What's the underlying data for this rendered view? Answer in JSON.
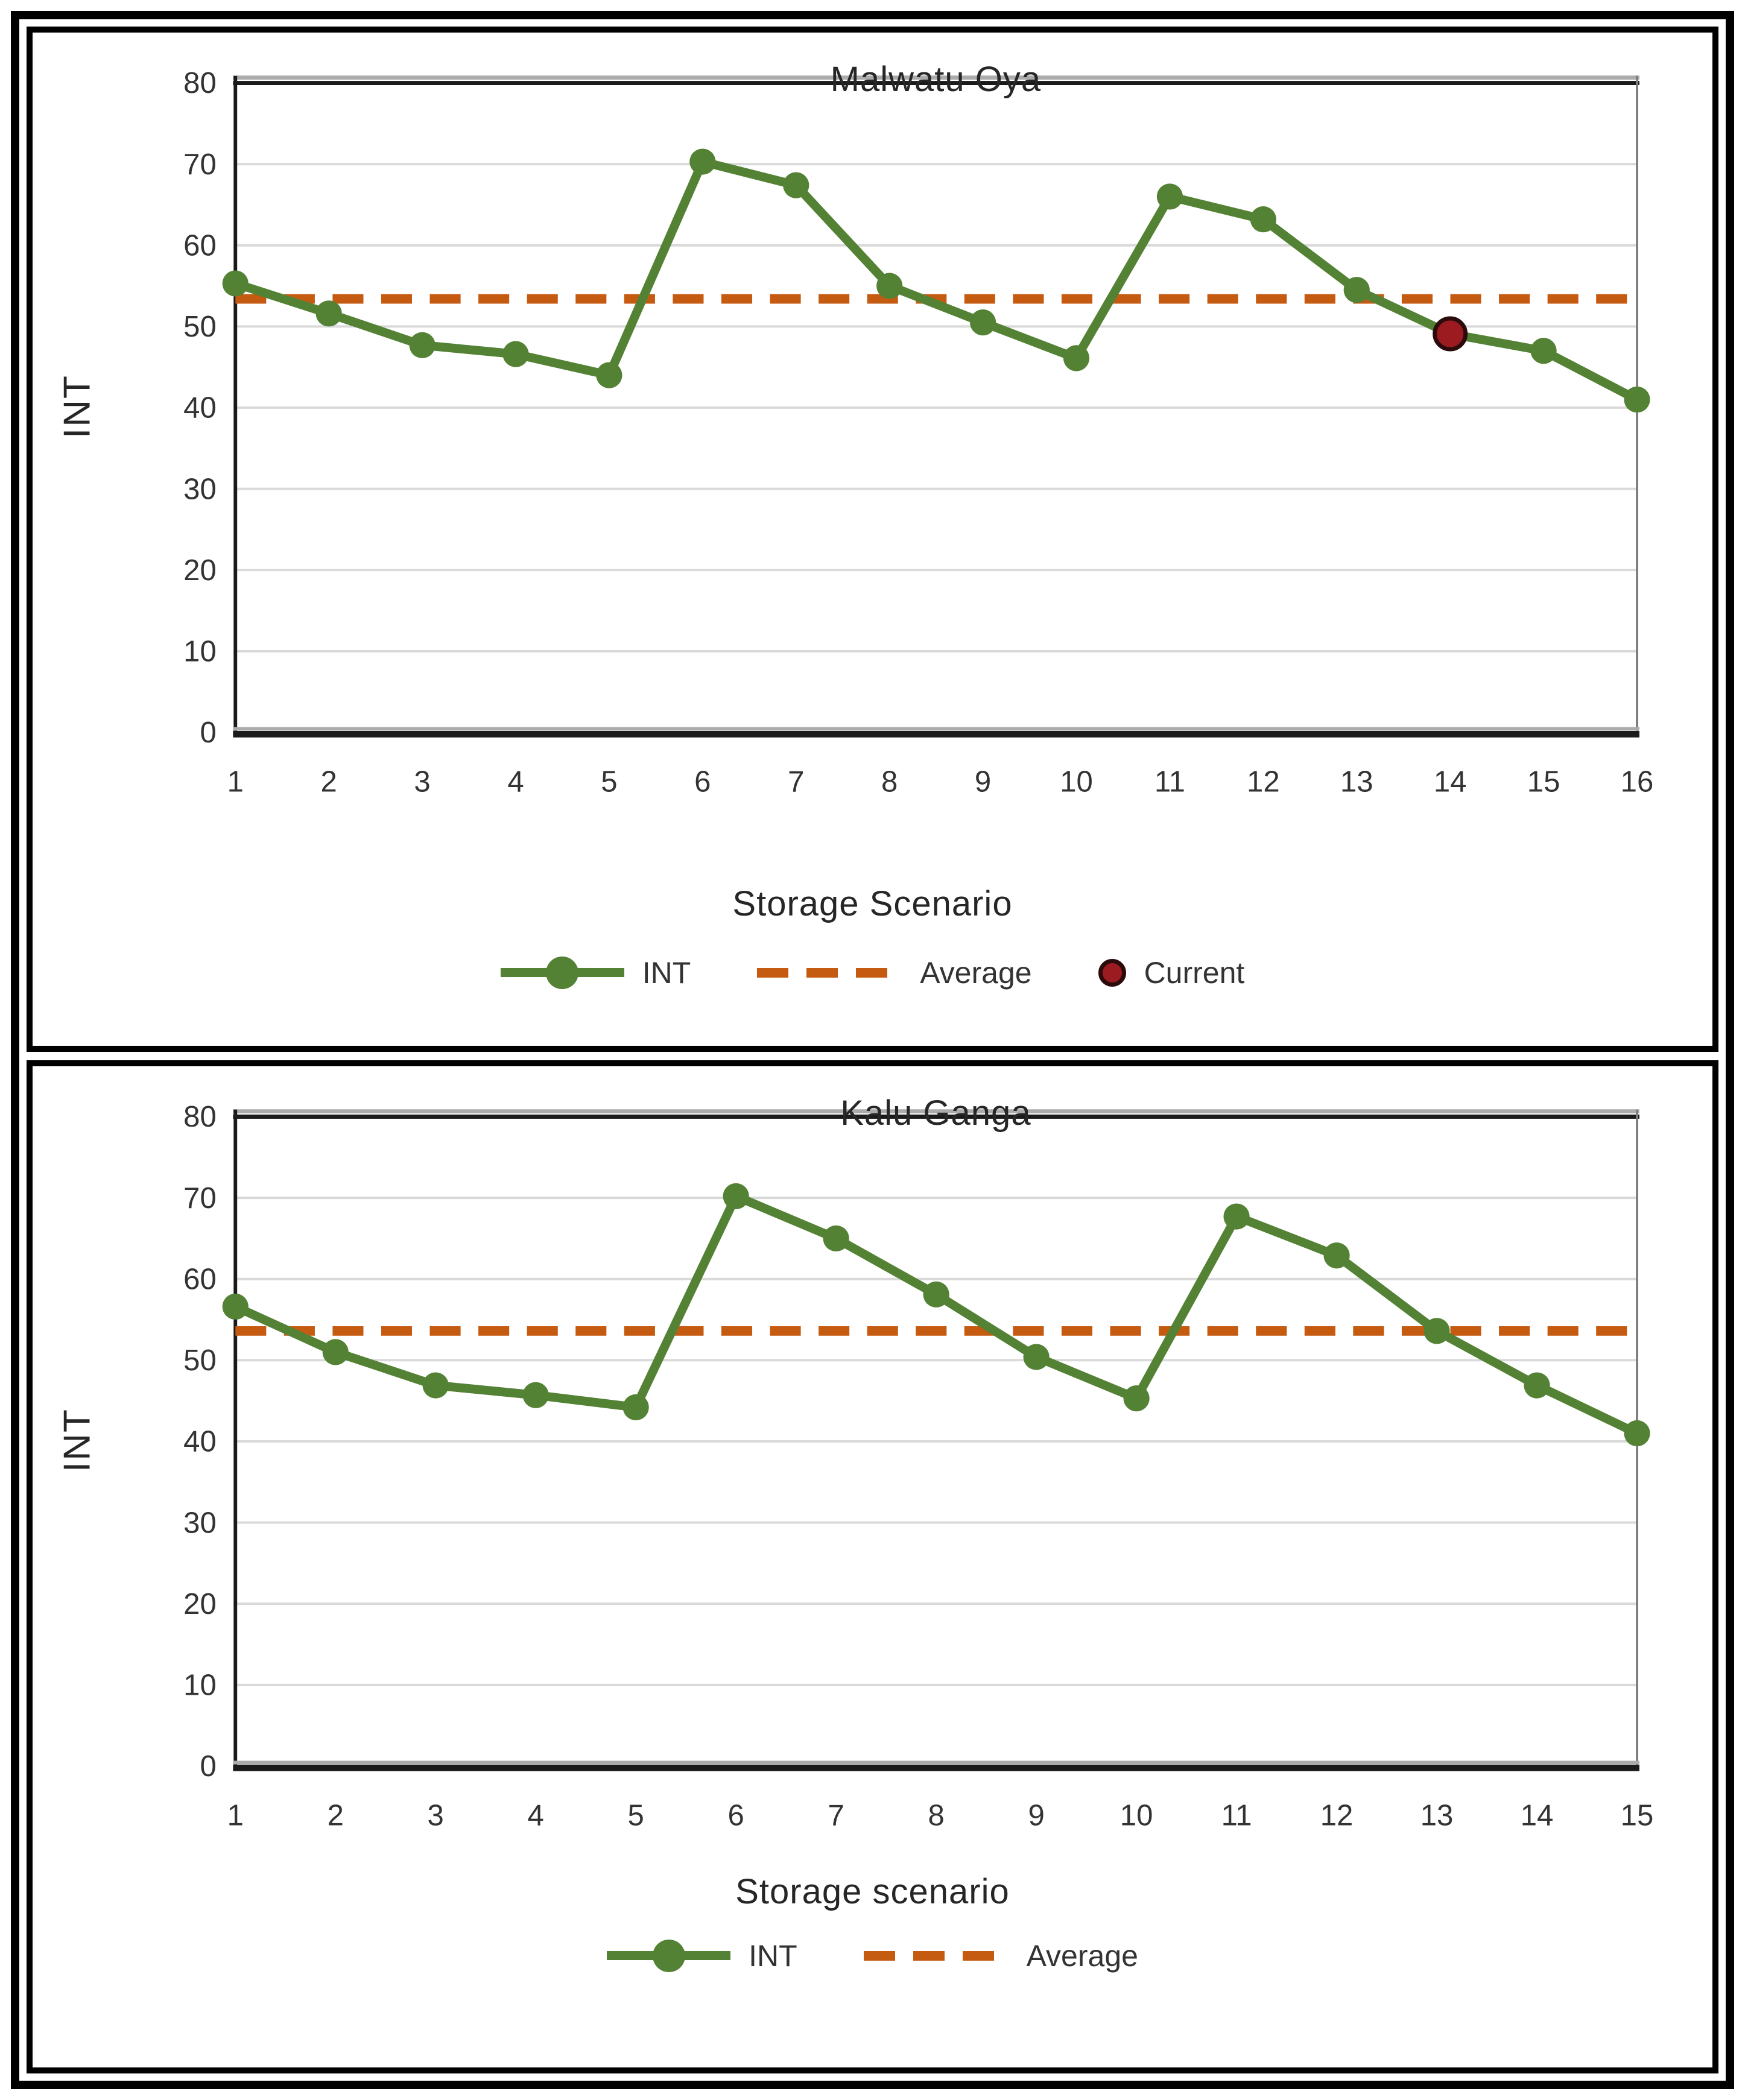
{
  "figure": {
    "background": "#ffffff",
    "frame_color": "#000000",
    "colors": {
      "int_line": "#548235",
      "average_line": "#C55A11",
      "current_fill": "#9C1B20",
      "current_stroke": "#2B0B0B",
      "gridline": "#D9D9D9",
      "axis_dark": "#1A1A1A",
      "axis_gray": "#ABABAB",
      "text": "#333333"
    }
  },
  "chart_data": [
    {
      "type": "line",
      "title": "Malwatu Oya",
      "xlabel": "Storage Scenario",
      "ylabel": "INT",
      "x": [
        1,
        2,
        3,
        4,
        5,
        6,
        7,
        8,
        9,
        10,
        11,
        12,
        13,
        14,
        15,
        16
      ],
      "ylim": [
        0,
        80
      ],
      "yticks": [
        0,
        10,
        20,
        30,
        40,
        50,
        60,
        70,
        80
      ],
      "grid": "horizontal",
      "legend_position": "bottom",
      "legend": [
        "INT",
        "Average",
        "Current"
      ],
      "series": [
        {
          "name": "INT",
          "style": "solid-line-markers",
          "color": "#548235",
          "values": [
            55.3,
            51.6,
            47.7,
            46.6,
            44.0,
            70.3,
            67.4,
            55.0,
            50.5,
            46.1,
            66.0,
            63.2,
            54.5,
            49.1,
            47.0,
            41.0
          ]
        },
        {
          "name": "Average",
          "style": "dashed-horizontal",
          "color": "#C55A11",
          "value": 53.4
        },
        {
          "name": "Current",
          "style": "point",
          "color": "#9C1B20",
          "point": {
            "x": 14,
            "y": 49.1
          }
        }
      ]
    },
    {
      "type": "line",
      "title": "Kalu Ganga",
      "xlabel": "Storage scenario",
      "ylabel": "INT",
      "x": [
        1,
        2,
        3,
        4,
        5,
        6,
        7,
        8,
        9,
        10,
        11,
        12,
        13,
        14,
        15
      ],
      "ylim": [
        0,
        80
      ],
      "yticks": [
        0,
        10,
        20,
        30,
        40,
        50,
        60,
        70,
        80
      ],
      "grid": "horizontal",
      "legend_position": "bottom",
      "legend": [
        "INT",
        "Average"
      ],
      "series": [
        {
          "name": "INT",
          "style": "solid-line-markers",
          "color": "#548235",
          "values": [
            56.6,
            51.0,
            46.9,
            45.7,
            44.2,
            70.2,
            65.0,
            58.1,
            50.4,
            45.3,
            67.7,
            62.9,
            53.6,
            46.9,
            41.0
          ]
        },
        {
          "name": "Average",
          "style": "dashed-horizontal",
          "color": "#C55A11",
          "value": 53.6
        }
      ]
    }
  ]
}
